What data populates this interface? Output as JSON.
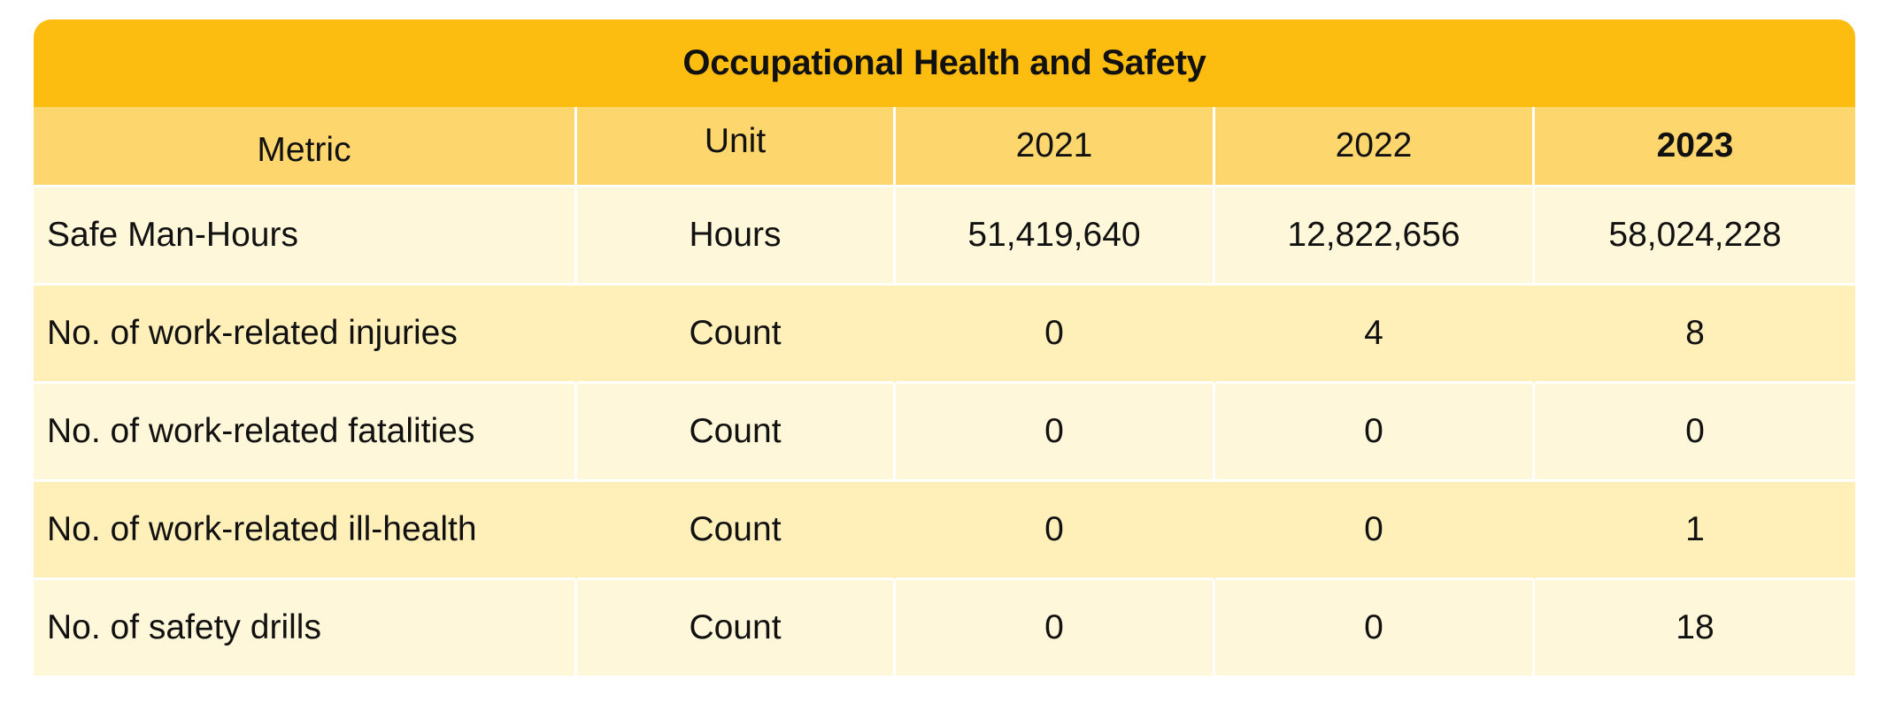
{
  "table": {
    "title": "Occupational Health and Safety",
    "headers": [
      "Metric",
      "Unit",
      "2021",
      "2022",
      "2023"
    ],
    "rows": [
      {
        "metric": "Safe Man-Hours",
        "unit": "Hours",
        "y2021": "51,419,640",
        "y2022": "12,822,656",
        "y2023": "58,024,228"
      },
      {
        "metric": "No. of work-related injuries",
        "unit": "Count",
        "y2021": "0",
        "y2022": "4",
        "y2023": "8"
      },
      {
        "metric": "No. of work-related fatalities",
        "unit": "Count",
        "y2021": "0",
        "y2022": "0",
        "y2023": "0"
      },
      {
        "metric": "No. of work-related ill-health",
        "unit": "Count",
        "y2021": "0",
        "y2022": "0",
        "y2023": "1"
      },
      {
        "metric": "No. of safety drills",
        "unit": "Count",
        "y2021": "0",
        "y2022": "0",
        "y2023": "18"
      }
    ]
  },
  "colors": {
    "title_bg": "#FDBD10",
    "header_bg": "#FDD66E",
    "row_light": "#FFF7D9",
    "row_dark": "#FFF0BA"
  }
}
